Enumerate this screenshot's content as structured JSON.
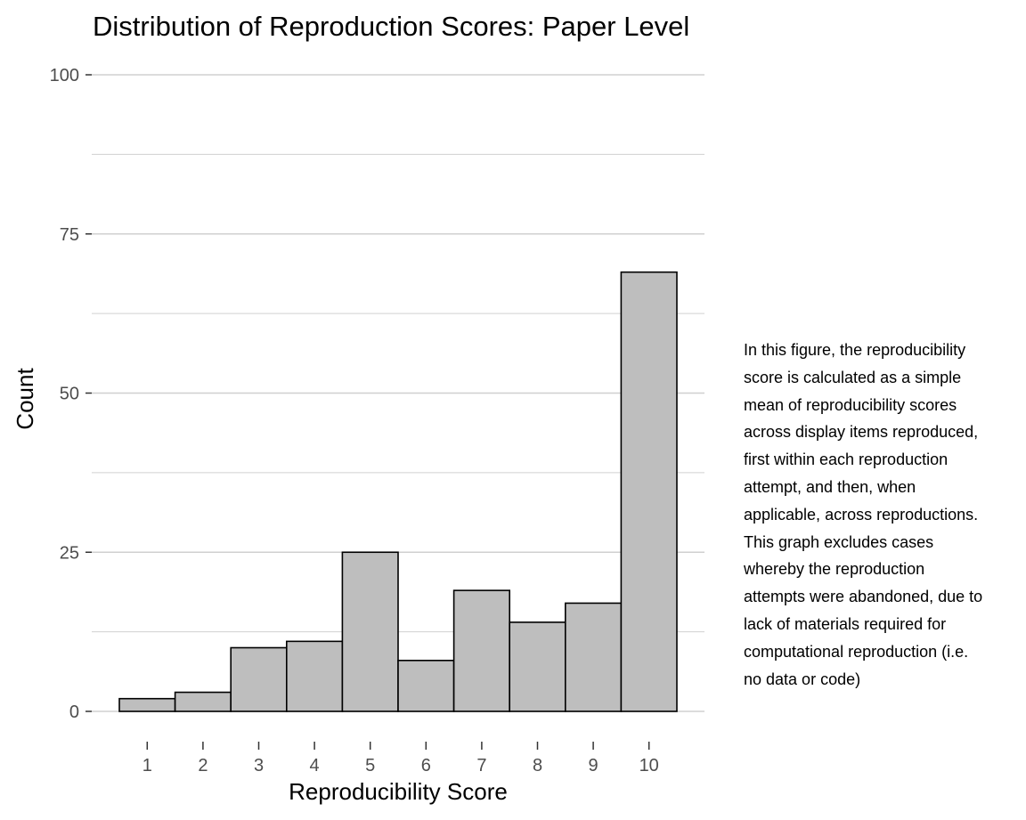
{
  "chart_data": {
    "type": "bar",
    "title": "Distribution of Reproduction Scores: Paper Level",
    "xlabel": "Reproducibility Score",
    "ylabel": "Count",
    "categories": [
      "1",
      "2",
      "3",
      "4",
      "5",
      "6",
      "7",
      "8",
      "9",
      "10"
    ],
    "values": [
      2,
      3,
      10,
      11,
      25,
      8,
      19,
      14,
      17,
      69
    ],
    "ylim": [
      0,
      100
    ],
    "yticks": [
      "0",
      "25",
      "50",
      "75",
      "100"
    ],
    "grid": true,
    "colors": {
      "bar_fill": "#bebebe",
      "bar_stroke": "#000000",
      "grid": "#d0d0d0",
      "tick_label": "#4d4d4d"
    }
  },
  "caption": {
    "lines": [
      "In this figure, the reproducibility",
      "score is calculated as a simple",
      "mean of reproducibility scores",
      "across display items reproduced,",
      "first within each reproduction",
      "attempt, and then, when",
      "applicable, across reproductions.",
      "This graph excludes cases",
      "whereby the reproduction",
      "attempts were abandoned, due to",
      "lack of materials required for",
      "computational reproduction (i.e.",
      "no data or code)"
    ]
  }
}
